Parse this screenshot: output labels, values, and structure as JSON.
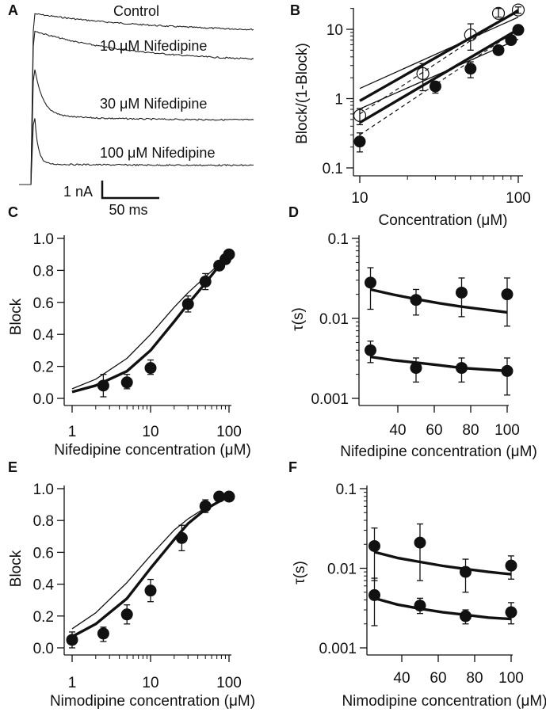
{
  "panel_letters": {
    "A": "A",
    "B": "B",
    "C": "C",
    "D": "D",
    "E": "E",
    "F": "F"
  },
  "chart_data": [
    {
      "panel": "A",
      "type": "line",
      "traces": [
        {
          "label": "Control",
          "peak_nA": 9.8,
          "end_nA": 8.7,
          "decay_ms": 70
        },
        {
          "label": "10 μM Nifedipine",
          "peak_nA": 8.8,
          "end_nA": 7.0,
          "decay_ms": 55
        },
        {
          "label": "30 μM Nifedipine",
          "peak_nA": 6.6,
          "end_nA": 3.7,
          "decay_ms": 7
        },
        {
          "label": "100 μM Nifedipine",
          "peak_nA": 3.8,
          "end_nA": 1.1,
          "decay_ms": 3
        }
      ],
      "scale_bar": {
        "current_label": "1 nA",
        "time_label": "50 ms",
        "current_nA": 1,
        "time_ms": 50
      }
    },
    {
      "panel": "B",
      "type": "scatter",
      "xlabel": "Concentration (μM)",
      "ylabel": "Block/(1-Block)",
      "xscale": "log",
      "yscale": "log",
      "xlim": [
        9,
        115
      ],
      "ylim": [
        0.1,
        22
      ],
      "xticks": [
        {
          "v": 10,
          "label": "10"
        },
        {
          "v": 100,
          "label": "100"
        }
      ],
      "yticks": [
        {
          "v": 0.1,
          "label": "0.1"
        },
        {
          "v": 1,
          "label": "1"
        },
        {
          "v": 10,
          "label": "10"
        }
      ],
      "series": [
        {
          "marker": "filled",
          "points": [
            {
              "x": 10,
              "y": 0.24,
              "lo": 0.17,
              "hi": 0.32
            },
            {
              "x": 30,
              "y": 1.5,
              "lo": 1.2,
              "hi": 1.7
            },
            {
              "x": 50,
              "y": 2.7,
              "lo": 2.0,
              "hi": 3.4
            },
            {
              "x": 75,
              "y": 5.0,
              "lo": 4.6,
              "hi": 5.4
            },
            {
              "x": 90,
              "y": 7.0,
              "lo": 6.3,
              "hi": 7.7
            },
            {
              "x": 100,
              "y": 9.8,
              "lo": 9.2,
              "hi": 10.4
            }
          ]
        },
        {
          "marker": "open",
          "points": [
            {
              "x": 10,
              "y": 0.57,
              "lo": 0.42,
              "hi": 0.72
            },
            {
              "x": 25,
              "y": 2.3,
              "lo": 1.3,
              "hi": 3.2
            },
            {
              "x": 50,
              "y": 8.3,
              "lo": 5.0,
              "hi": 12
            },
            {
              "x": 75,
              "y": 17,
              "lo": 15,
              "hi": 20
            },
            {
              "x": 100,
              "y": 19,
              "lo": 17,
              "hi": 21
            }
          ]
        }
      ],
      "lines": [
        {
          "style": "thin",
          "x": [
            10,
            100
          ],
          "y": [
            1.4,
            15
          ]
        },
        {
          "style": "thick",
          "x": [
            10,
            100
          ],
          "y": [
            0.93,
            18.5
          ]
        },
        {
          "style": "thin",
          "x": [
            10,
            100
          ],
          "y": [
            0.71,
            7.2
          ]
        },
        {
          "style": "thick",
          "x": [
            10,
            100
          ],
          "y": [
            0.45,
            10
          ]
        },
        {
          "style": "dashed",
          "x": [
            10,
            100
          ],
          "y": [
            0.3,
            10
          ]
        },
        {
          "style": "dashed",
          "x": [
            10,
            100
          ],
          "y": [
            0.6,
            19.5
          ]
        }
      ]
    },
    {
      "panel": "C",
      "type": "scatter",
      "xlabel": "Nifedipine concentration (μM)",
      "ylabel": "Block",
      "xscale": "log",
      "yscale": "linear",
      "xlim": [
        0.9,
        105
      ],
      "ylim": [
        0,
        1.0
      ],
      "xticks": [
        {
          "v": 1,
          "label": "1"
        },
        {
          "v": 10,
          "label": "10"
        },
        {
          "v": 100,
          "label": "100"
        }
      ],
      "yticks": [
        {
          "v": 0,
          "label": "0.0"
        },
        {
          "v": 0.2,
          "label": "0.2"
        },
        {
          "v": 0.4,
          "label": "0.4"
        },
        {
          "v": 0.6,
          "label": "0.6"
        },
        {
          "v": 0.8,
          "label": "0.8"
        },
        {
          "v": 1.0,
          "label": "1.0"
        }
      ],
      "series": [
        {
          "marker": "filled",
          "points": [
            {
              "x": 2.5,
              "y": 0.08,
              "lo": 0.01,
              "hi": 0.15
            },
            {
              "x": 5,
              "y": 0.1,
              "lo": 0.06,
              "hi": 0.15
            },
            {
              "x": 10,
              "y": 0.19,
              "lo": 0.15,
              "hi": 0.24
            },
            {
              "x": 30,
              "y": 0.59,
              "lo": 0.54,
              "hi": 0.64
            },
            {
              "x": 50,
              "y": 0.73,
              "lo": 0.68,
              "hi": 0.78
            },
            {
              "x": 75,
              "y": 0.83,
              "lo": 0.81,
              "hi": 0.85
            },
            {
              "x": 90,
              "y": 0.87,
              "lo": 0.85,
              "hi": 0.89
            },
            {
              "x": 100,
              "y": 0.9,
              "lo": 0.88,
              "hi": 0.92
            }
          ]
        }
      ],
      "lines": [
        {
          "style": "thin",
          "x": [
            1,
            2,
            5,
            10,
            20,
            30,
            50,
            75,
            100
          ],
          "y": [
            0.06,
            0.12,
            0.25,
            0.4,
            0.57,
            0.66,
            0.76,
            0.84,
            0.9
          ]
        },
        {
          "style": "thick",
          "x": [
            1,
            2,
            5,
            10,
            20,
            30,
            50,
            75,
            100
          ],
          "y": [
            0.04,
            0.08,
            0.17,
            0.3,
            0.48,
            0.59,
            0.72,
            0.83,
            0.9
          ]
        }
      ]
    },
    {
      "panel": "D",
      "type": "scatter",
      "xlabel": "Nifedipine concentration (μM)",
      "ylabel": "τ(s)",
      "xscale": "linear",
      "yscale": "log",
      "xlim": [
        18.3,
        101
      ],
      "ylim": [
        0.001,
        0.1
      ],
      "xticks": [
        {
          "v": 40,
          "label": "40"
        },
        {
          "v": 60,
          "label": "60"
        },
        {
          "v": 80,
          "label": "80"
        },
        {
          "v": 100,
          "label": "100"
        }
      ],
      "yticks": [
        {
          "v": 0.001,
          "label": "0.001"
        },
        {
          "v": 0.01,
          "label": "0.01"
        },
        {
          "v": 0.1,
          "label": "0.1"
        }
      ],
      "series": [
        {
          "marker": "filled",
          "points": [
            {
              "x": 25,
              "y": 0.028,
              "lo": 0.013,
              "hi": 0.043
            },
            {
              "x": 50,
              "y": 0.017,
              "lo": 0.011,
              "hi": 0.023
            },
            {
              "x": 75,
              "y": 0.021,
              "lo": 0.0105,
              "hi": 0.032
            },
            {
              "x": 100,
              "y": 0.02,
              "lo": 0.008,
              "hi": 0.032
            }
          ]
        },
        {
          "marker": "filled",
          "points": [
            {
              "x": 25,
              "y": 0.004,
              "lo": 0.0028,
              "hi": 0.0052
            },
            {
              "x": 50,
              "y": 0.0024,
              "lo": 0.0016,
              "hi": 0.0032
            },
            {
              "x": 75,
              "y": 0.0024,
              "lo": 0.0016,
              "hi": 0.0032
            },
            {
              "x": 100,
              "y": 0.0022,
              "lo": 0.0011,
              "hi": 0.0032
            }
          ]
        }
      ],
      "lines": [
        {
          "style": "thick",
          "x": [
            25,
            37.5,
            50,
            62.5,
            75,
            87.5,
            100
          ],
          "y": [
            0.023,
            0.0198,
            0.0174,
            0.0155,
            0.014,
            0.0129,
            0.0119
          ]
        },
        {
          "style": "thick",
          "x": [
            25,
            37.5,
            50,
            62.5,
            75,
            87.5,
            100
          ],
          "y": [
            0.0033,
            0.003,
            0.0028,
            0.0026,
            0.0024,
            0.0023,
            0.0022
          ]
        }
      ]
    },
    {
      "panel": "E",
      "type": "scatter",
      "xlabel": "Nimodipine concentration (μM)",
      "ylabel": "Block",
      "xscale": "log",
      "yscale": "linear",
      "xlim": [
        0.9,
        105
      ],
      "ylim": [
        0,
        1.0
      ],
      "xticks": [
        {
          "v": 1,
          "label": "1"
        },
        {
          "v": 10,
          "label": "10"
        },
        {
          "v": 100,
          "label": "100"
        }
      ],
      "yticks": [
        {
          "v": 0,
          "label": "0.0"
        },
        {
          "v": 0.2,
          "label": "0.2"
        },
        {
          "v": 0.4,
          "label": "0.4"
        },
        {
          "v": 0.6,
          "label": "0.6"
        },
        {
          "v": 0.8,
          "label": "0.8"
        },
        {
          "v": 1.0,
          "label": "1.0"
        }
      ],
      "series": [
        {
          "marker": "filled",
          "points": [
            {
              "x": 1,
              "y": 0.05,
              "lo": 0.0,
              "hi": 0.1
            },
            {
              "x": 2.5,
              "y": 0.09,
              "lo": 0.04,
              "hi": 0.13
            },
            {
              "x": 5,
              "y": 0.21,
              "lo": 0.15,
              "hi": 0.27
            },
            {
              "x": 10,
              "y": 0.36,
              "lo": 0.29,
              "hi": 0.43
            },
            {
              "x": 25,
              "y": 0.69,
              "lo": 0.61,
              "hi": 0.77
            },
            {
              "x": 50,
              "y": 0.89,
              "lo": 0.85,
              "hi": 0.93
            },
            {
              "x": 75,
              "y": 0.95,
              "lo": 0.93,
              "hi": 0.97
            },
            {
              "x": 100,
              "y": 0.95,
              "lo": 0.93,
              "hi": 0.97
            }
          ]
        }
      ],
      "lines": [
        {
          "style": "thin",
          "x": [
            1,
            2,
            5,
            10,
            20,
            30,
            50,
            75,
            100
          ],
          "y": [
            0.12,
            0.22,
            0.41,
            0.58,
            0.74,
            0.81,
            0.88,
            0.92,
            0.95
          ]
        },
        {
          "style": "thick",
          "x": [
            1,
            2,
            5,
            10,
            20,
            30,
            50,
            75,
            100
          ],
          "y": [
            0.07,
            0.15,
            0.31,
            0.5,
            0.68,
            0.78,
            0.87,
            0.92,
            0.95
          ]
        }
      ]
    },
    {
      "panel": "F",
      "type": "scatter",
      "xlabel": "Nimodipine concentration (μM)",
      "ylabel": "τ(s)",
      "xscale": "linear",
      "yscale": "log",
      "xlim": [
        21,
        101
      ],
      "ylim": [
        0.001,
        0.1
      ],
      "xticks": [
        {
          "v": 40,
          "label": "40"
        },
        {
          "v": 60,
          "label": "60"
        },
        {
          "v": 80,
          "label": "80"
        },
        {
          "v": 100,
          "label": "100"
        }
      ],
      "yticks": [
        {
          "v": 0.001,
          "label": "0.001"
        },
        {
          "v": 0.01,
          "label": "0.01"
        },
        {
          "v": 0.1,
          "label": "0.1"
        }
      ],
      "series": [
        {
          "marker": "filled",
          "points": [
            {
              "x": 25,
              "y": 0.019,
              "lo": 0.007,
              "hi": 0.032
            },
            {
              "x": 50,
              "y": 0.021,
              "lo": 0.007,
              "hi": 0.036
            },
            {
              "x": 75,
              "y": 0.009,
              "lo": 0.005,
              "hi": 0.013
            },
            {
              "x": 100,
              "y": 0.0108,
              "lo": 0.0073,
              "hi": 0.0143
            }
          ]
        },
        {
          "marker": "filled",
          "points": [
            {
              "x": 25,
              "y": 0.0046,
              "lo": 0.0019,
              "hi": 0.0075
            },
            {
              "x": 50,
              "y": 0.0034,
              "lo": 0.0027,
              "hi": 0.0042
            },
            {
              "x": 75,
              "y": 0.0025,
              "lo": 0.002,
              "hi": 0.003
            },
            {
              "x": 100,
              "y": 0.0028,
              "lo": 0.002,
              "hi": 0.0037
            }
          ]
        }
      ],
      "lines": [
        {
          "style": "thick",
          "x": [
            25,
            37.5,
            50,
            62.5,
            75,
            87.5,
            100
          ],
          "y": [
            0.016,
            0.0135,
            0.012,
            0.0107,
            0.0098,
            0.009,
            0.0084
          ]
        },
        {
          "style": "thick",
          "x": [
            25,
            37.5,
            50,
            62.5,
            75,
            87.5,
            100
          ],
          "y": [
            0.0042,
            0.0035,
            0.0031,
            0.0028,
            0.0026,
            0.0024,
            0.0023
          ]
        }
      ]
    }
  ]
}
